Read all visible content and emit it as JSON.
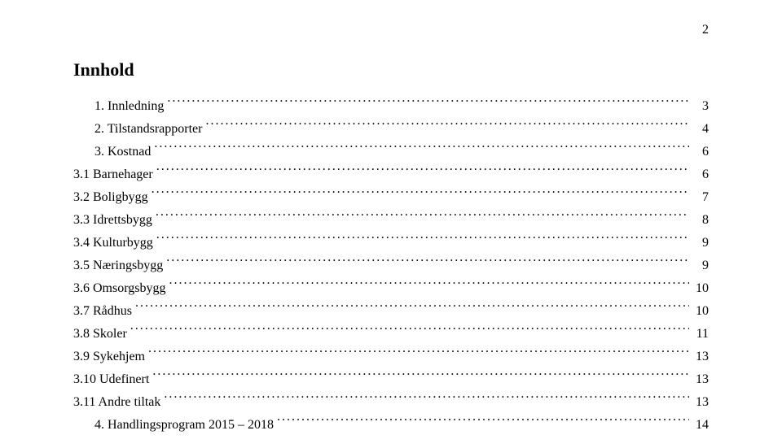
{
  "pageNumber": "2",
  "title": "Innhold",
  "colors": {
    "background": "#ffffff",
    "text": "#000000"
  },
  "typography": {
    "fontFamily": "Times New Roman",
    "titleFontSize": 22,
    "entryFontSize": 16,
    "lineHeight": 1.75
  },
  "toc": [
    {
      "number": "1.",
      "label": "Innledning",
      "page": "3",
      "indent": 1
    },
    {
      "number": "2.",
      "label": "Tilstandsrapporter",
      "page": "4",
      "indent": 1
    },
    {
      "number": "3.",
      "label": "Kostnad",
      "page": "6",
      "indent": 1
    },
    {
      "number": "",
      "label": "3.1 Barnehager",
      "page": "6",
      "indent": 0
    },
    {
      "number": "",
      "label": "3.2 Boligbygg",
      "page": "7",
      "indent": 0
    },
    {
      "number": "",
      "label": "3.3 Idrettsbygg",
      "page": "8",
      "indent": 0
    },
    {
      "number": "",
      "label": "3.4 Kulturbygg",
      "page": "9",
      "indent": 0
    },
    {
      "number": "",
      "label": "3.5 Næringsbygg",
      "page": "9",
      "indent": 0
    },
    {
      "number": "",
      "label": "3.6 Omsorgsbygg",
      "page": "10",
      "indent": 0
    },
    {
      "number": "",
      "label": "3.7 Rådhus",
      "page": "10",
      "indent": 0
    },
    {
      "number": "",
      "label": "3.8 Skoler",
      "page": "11",
      "indent": 0
    },
    {
      "number": "",
      "label": "3.9 Sykehjem",
      "page": "13",
      "indent": 0
    },
    {
      "number": "",
      "label": "3.10 Udefinert",
      "page": "13",
      "indent": 0
    },
    {
      "number": "",
      "label": "3.11 Andre tiltak",
      "page": "13",
      "indent": 0
    },
    {
      "number": "4.",
      "label": "Handlingsprogram 2015 – 2018",
      "page": "14",
      "indent": 1
    }
  ]
}
